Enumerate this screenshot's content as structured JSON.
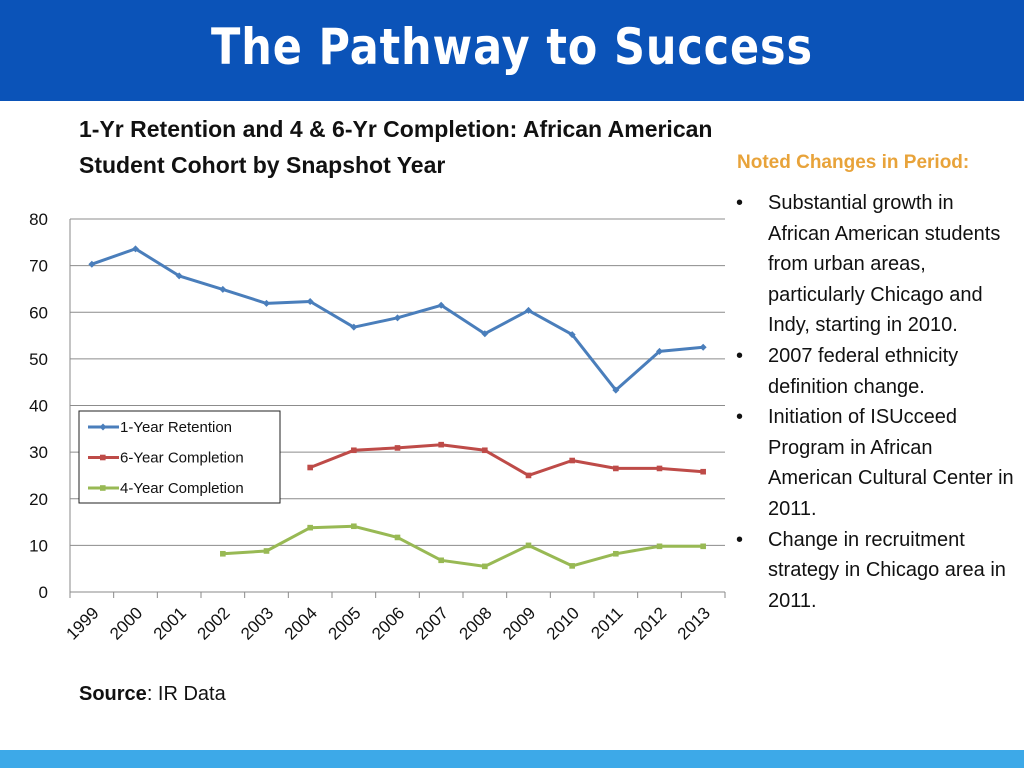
{
  "banner": {
    "title": "The Pathway to Success"
  },
  "colors": {
    "banner": "#0b53b8",
    "footer": "#3da9e8",
    "heading": "#e8a33a"
  },
  "side_panel": {
    "heading": "Noted Changes in Period:",
    "items": [
      "Substantial growth in African American students from urban areas, particularly Chicago and Indy, starting in 2010.",
      "2007 federal ethnicity definition change.",
      "Initiation of ISUcceed Program in African American Cultural Center in 2011.",
      "Change in recruitment strategy in Chicago area in 2011."
    ]
  },
  "source": {
    "label": "Source",
    "text": ":  IR Data"
  },
  "chart_data": {
    "type": "line",
    "title": "1-Yr Retention and 4 & 6-Yr Completion: African American Student Cohort by Snapshot Year",
    "xlabel": "",
    "ylabel": "",
    "categories": [
      "1999",
      "2000",
      "2001",
      "2002",
      "2003",
      "2004",
      "2005",
      "2006",
      "2007",
      "2008",
      "2009",
      "2010",
      "2011",
      "2012",
      "2013"
    ],
    "ylim": [
      0,
      80
    ],
    "yticks": [
      0,
      10,
      20,
      30,
      40,
      50,
      60,
      70,
      80
    ],
    "grid": true,
    "legend_position": "middle-left",
    "series": [
      {
        "name": "1-Year Retention",
        "color": "#4a7ebb",
        "values": [
          70.3,
          73.6,
          67.8,
          64.9,
          61.9,
          62.3,
          56.8,
          58.8,
          61.5,
          55.4,
          60.4,
          55.2,
          43.3,
          51.6,
          52.5
        ]
      },
      {
        "name": "6-Year Completion",
        "color": "#be4b48",
        "values": [
          null,
          null,
          null,
          null,
          null,
          26.7,
          30.4,
          30.9,
          31.6,
          30.4,
          25.0,
          28.2,
          26.5,
          26.5,
          25.8
        ]
      },
      {
        "name": "4-Year Completion",
        "color": "#98b954",
        "values": [
          null,
          null,
          null,
          8.2,
          8.8,
          13.8,
          14.1,
          11.7,
          6.8,
          5.5,
          10.0,
          5.6,
          8.2,
          9.8,
          9.8
        ]
      }
    ]
  }
}
